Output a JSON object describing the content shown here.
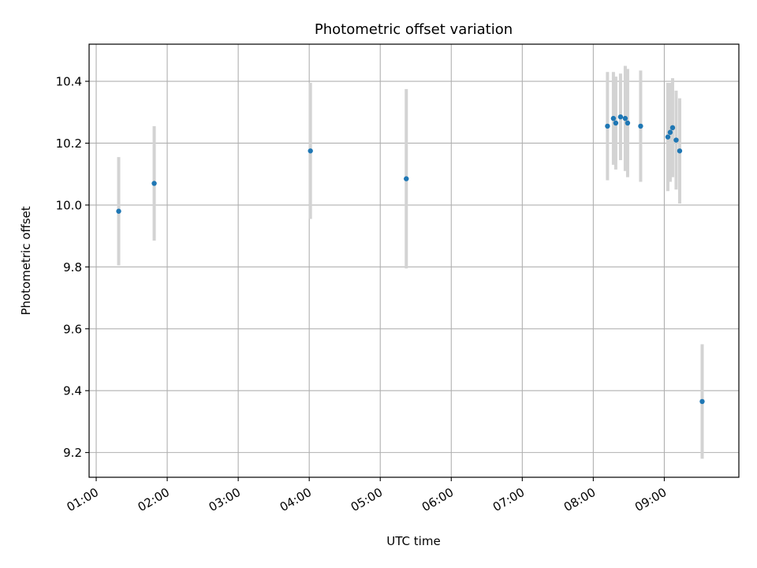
{
  "chart_data": {
    "type": "scatter",
    "title": "Photometric offset variation",
    "xlabel": "UTC time",
    "ylabel": "Photometric offset",
    "x_tick_labels": [
      "01:00",
      "02:00",
      "03:00",
      "04:00",
      "05:00",
      "06:00",
      "07:00",
      "08:00",
      "09:00"
    ],
    "y_tick_labels": [
      "9.2",
      "9.4",
      "9.6",
      "9.8",
      "10.0",
      "10.2",
      "10.4"
    ],
    "y_ticks": [
      9.2,
      9.4,
      9.6,
      9.8,
      10.0,
      10.2,
      10.4
    ],
    "xlim": [
      "00:54",
      "10:03"
    ],
    "ylim": [
      9.12,
      10.52
    ],
    "grid": true,
    "colors": {
      "points": "#1f77b4",
      "error_bars": "#d3d3d3",
      "grid": "#b0b0b0"
    },
    "series": [
      {
        "points": [
          {
            "x": "01:19",
            "y": 9.98,
            "err": 0.175
          },
          {
            "x": "01:49",
            "y": 10.07,
            "err": 0.185
          },
          {
            "x": "04:01",
            "y": 10.175,
            "err": 0.22
          },
          {
            "x": "05:22",
            "y": 10.085,
            "err": 0.29
          },
          {
            "x": "08:12",
            "y": 10.255,
            "err": 0.175
          },
          {
            "x": "08:17",
            "y": 10.28,
            "err": 0.15
          },
          {
            "x": "08:19",
            "y": 10.265,
            "err": 0.15
          },
          {
            "x": "08:23",
            "y": 10.285,
            "err": 0.14
          },
          {
            "x": "08:27",
            "y": 10.28,
            "err": 0.17
          },
          {
            "x": "08:29",
            "y": 10.265,
            "err": 0.175
          },
          {
            "x": "08:40",
            "y": 10.255,
            "err": 0.18
          },
          {
            "x": "09:03",
            "y": 10.22,
            "err": 0.175
          },
          {
            "x": "09:05",
            "y": 10.235,
            "err": 0.16
          },
          {
            "x": "09:07",
            "y": 10.25,
            "err": 0.16
          },
          {
            "x": "09:10",
            "y": 10.21,
            "err": 0.16
          },
          {
            "x": "09:13",
            "y": 10.175,
            "err": 0.17
          },
          {
            "x": "09:32",
            "y": 9.365,
            "err": 0.185
          }
        ]
      }
    ]
  }
}
